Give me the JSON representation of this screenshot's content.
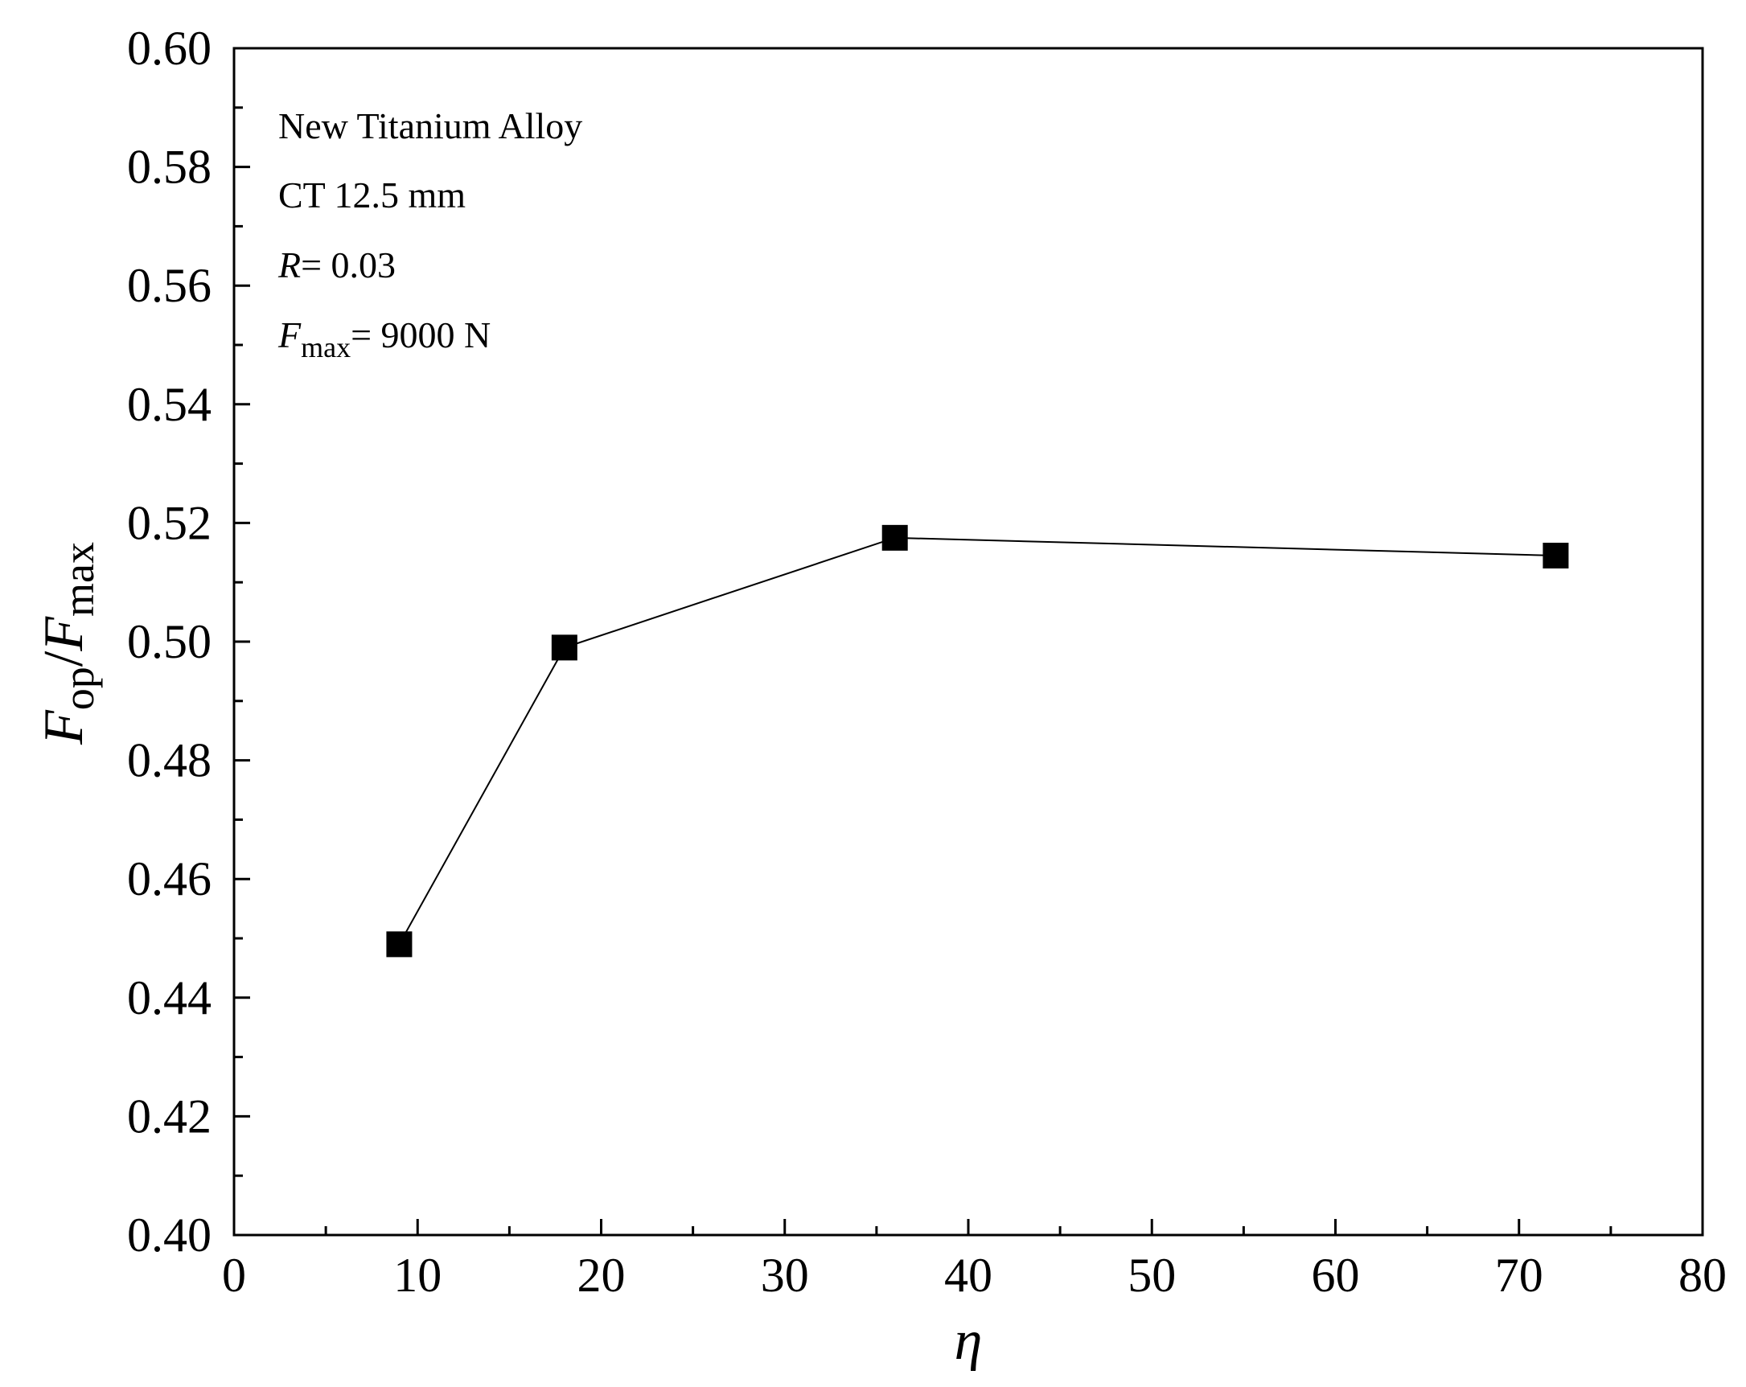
{
  "chart_data": {
    "type": "line",
    "title": "",
    "xlabel": "η",
    "ylabel": {
      "F1": "F",
      "sub1": "op",
      "slash": "/",
      "F2": "F",
      "sub2": "max"
    },
    "xlim": [
      0,
      80
    ],
    "ylim": [
      0.4,
      0.6
    ],
    "x_ticks": [
      0,
      10,
      20,
      30,
      40,
      50,
      60,
      70,
      80
    ],
    "x_tick_labels": [
      "0",
      "10",
      "20",
      "30",
      "40",
      "50",
      "60",
      "70",
      "80"
    ],
    "x_minor_step": 5,
    "y_ticks": [
      0.4,
      0.42,
      0.44,
      0.46,
      0.48,
      0.5,
      0.52,
      0.54,
      0.56,
      0.58,
      0.6
    ],
    "y_tick_labels": [
      "0.40",
      "0.42",
      "0.44",
      "0.46",
      "0.48",
      "0.50",
      "0.52",
      "0.54",
      "0.56",
      "0.58",
      "0.60"
    ],
    "y_minor_step": 0.01,
    "grid": false,
    "legend": "none",
    "series": [
      {
        "name": "Fop/Fmax",
        "marker": "square",
        "color": "#000000",
        "x": [
          9,
          18,
          36,
          72
        ],
        "y": [
          0.449,
          0.499,
          0.5175,
          0.5145
        ]
      }
    ],
    "annotations": {
      "material": "New Titanium Alloy",
      "specimen": "CT 12.5 mm",
      "r_symbol": "R",
      "r_value": "= 0.03",
      "f_symbol": "F",
      "f_sub": "max",
      "f_value": "= 9000 N"
    }
  }
}
